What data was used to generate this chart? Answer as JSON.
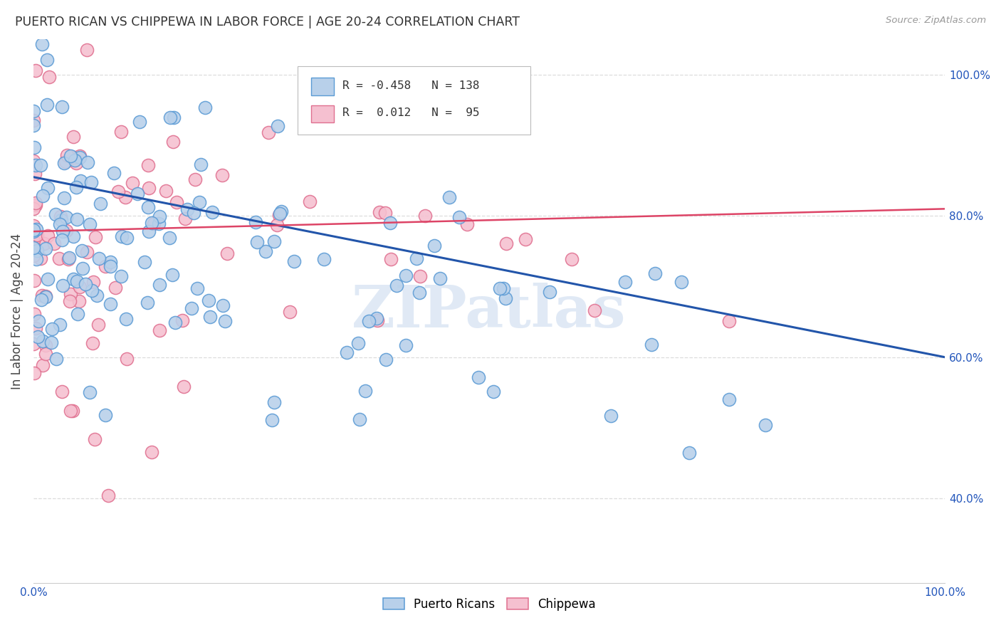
{
  "title": "PUERTO RICAN VS CHIPPEWA IN LABOR FORCE | AGE 20-24 CORRELATION CHART",
  "source": "Source: ZipAtlas.com",
  "ylabel": "In Labor Force | Age 20-24",
  "legend_labels": [
    "Puerto Ricans",
    "Chippewa"
  ],
  "r_blue": -0.458,
  "n_blue": 138,
  "r_pink": 0.012,
  "n_pink": 95,
  "blue_color": "#b8d0ea",
  "blue_edge": "#5b9bd5",
  "pink_color": "#f5c0d0",
  "pink_edge": "#e07090",
  "blue_line_color": "#2255aa",
  "pink_line_color": "#dd4466",
  "watermark_text": "ZIPatlas",
  "watermark_color": "#c8d8ee",
  "background_color": "#ffffff",
  "grid_color": "#dddddd",
  "xlim": [
    0.0,
    1.0
  ],
  "ylim": [
    0.28,
    1.05
  ],
  "blue_line_start_y": 0.855,
  "blue_line_end_y": 0.6,
  "pink_line_start_y": 0.778,
  "pink_line_end_y": 0.81,
  "blue_seed": 42,
  "pink_seed": 7
}
